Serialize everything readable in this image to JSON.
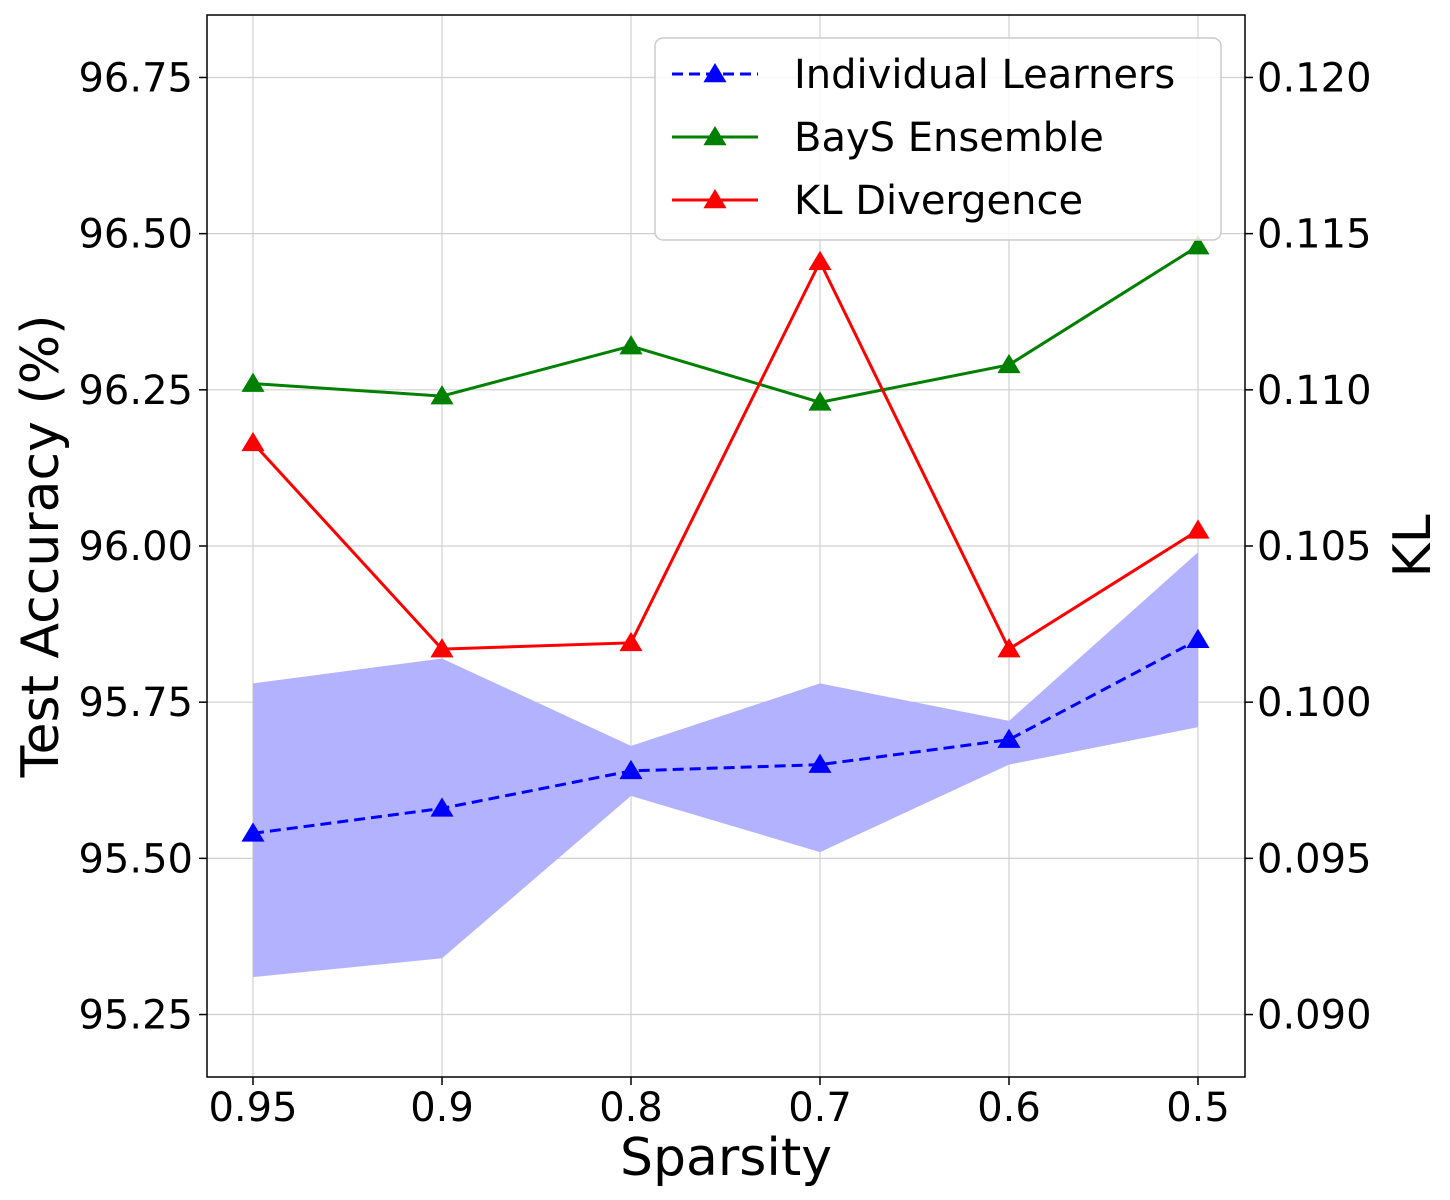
{
  "chart_data": {
    "type": "line",
    "title": "",
    "xlabel": "Sparsity",
    "ylabel": "Test Accuracy (%)",
    "y2label": "KL",
    "categories": [
      "0.95",
      "0.9",
      "0.8",
      "0.7",
      "0.6",
      "0.5"
    ],
    "ylim": [
      95.15,
      96.85
    ],
    "y2lim": [
      0.088,
      0.122
    ],
    "yticks": [
      "95.25",
      "95.50",
      "95.75",
      "96.00",
      "96.25",
      "96.50",
      "96.75"
    ],
    "y2ticks": [
      "0.090",
      "0.095",
      "0.100",
      "0.105",
      "0.110",
      "0.115",
      "0.120"
    ],
    "grid": true,
    "legend_position": "top-right",
    "band": {
      "series": "Individual Learners",
      "lower": [
        95.31,
        95.34,
        95.6,
        95.51,
        95.65,
        95.71
      ],
      "upper": [
        95.78,
        95.82,
        95.68,
        95.78,
        95.72,
        95.99
      ],
      "color": "#b2b2ff"
    },
    "series": [
      {
        "name": "Individual Learners",
        "axis": "left",
        "values": [
          95.54,
          95.58,
          95.64,
          95.65,
          95.69,
          95.85
        ],
        "color": "#0000ff",
        "dashed": true
      },
      {
        "name": "BayS Ensemble",
        "axis": "left",
        "values": [
          96.26,
          96.24,
          96.32,
          96.23,
          96.29,
          96.48
        ],
        "color": "#008000",
        "dashed": false
      },
      {
        "name": "KL Divergence",
        "axis": "right",
        "values": [
          0.1083,
          0.1017,
          0.1019,
          0.1141,
          0.1017,
          0.1055
        ],
        "color": "#ff0000",
        "dashed": false
      }
    ]
  }
}
